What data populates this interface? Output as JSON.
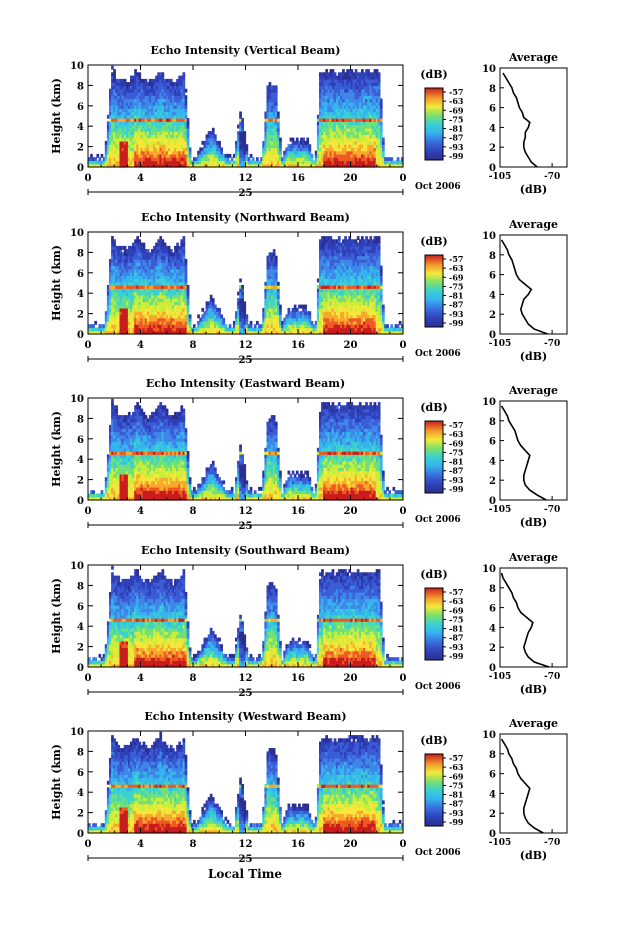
{
  "figure": {
    "x_label": "Local Time",
    "date_day": "25",
    "date_month": "Oct 2006",
    "colorbar_unit": "(dB)",
    "avg_title": "Average",
    "avg_xlabel": "(dB)"
  },
  "colors": {
    "palette": [
      "#2b2f8f",
      "#3040b8",
      "#3a5cd6",
      "#3f86e8",
      "#35b4ee",
      "#3ad2d0",
      "#6fe07a",
      "#c8ee3a",
      "#f6e73a",
      "#f7a92e",
      "#ee5a24",
      "#c91d1d"
    ]
  },
  "chart_data": [
    {
      "type": "heatmap",
      "title": "Echo Intensity (Vertical Beam)",
      "ylabel": "Height (km)",
      "x_ticks": [
        "0",
        "4",
        "8",
        "12",
        "16",
        "20",
        "0"
      ],
      "y_ticks": [
        "0",
        "2",
        "4",
        "6",
        "8",
        "10"
      ],
      "xlim": [
        0,
        24
      ],
      "ylim": [
        0,
        10
      ],
      "colorbar_ticks": [
        "-57",
        "-63",
        "-69",
        "-75",
        "-81",
        "-87",
        "-93",
        "-99"
      ],
      "profile": {
        "x_ticks": [
          "-105",
          "-70"
        ],
        "xlim": [
          -105,
          -60
        ],
        "heights": [
          0,
          0.5,
          1,
          1.5,
          2,
          2.5,
          3,
          3.5,
          4,
          4.5,
          5,
          5.5,
          6,
          6.5,
          7,
          7.5,
          8,
          8.5,
          9,
          9.5
        ],
        "values": [
          -80,
          -84,
          -86,
          -88,
          -89,
          -89,
          -88,
          -88,
          -86,
          -85,
          -89,
          -90,
          -92,
          -93,
          -94,
          -96,
          -97,
          -99,
          -101,
          -103
        ]
      }
    },
    {
      "type": "heatmap",
      "title": "Echo Intensity (Northward Beam)",
      "ylabel": "Height (km)",
      "x_ticks": [
        "0",
        "4",
        "8",
        "12",
        "16",
        "20",
        "0"
      ],
      "y_ticks": [
        "0",
        "2",
        "4",
        "6",
        "8",
        "10"
      ],
      "xlim": [
        0,
        24
      ],
      "ylim": [
        0,
        10
      ],
      "colorbar_ticks": [
        "-57",
        "-63",
        "-69",
        "-75",
        "-81",
        "-87",
        "-93",
        "-99"
      ],
      "profile": {
        "x_ticks": [
          "-105",
          "-70"
        ],
        "xlim": [
          -105,
          -60
        ],
        "heights": [
          0,
          0.5,
          1,
          1.5,
          2,
          2.5,
          3,
          3.5,
          4,
          4.5,
          5,
          5.5,
          6,
          6.5,
          7,
          7.5,
          8,
          8.5,
          9,
          9.5
        ],
        "values": [
          -73,
          -82,
          -86,
          -88,
          -90,
          -91,
          -90,
          -89,
          -86,
          -84,
          -88,
          -92,
          -94,
          -95,
          -96,
          -97,
          -99,
          -100,
          -102,
          -104
        ]
      }
    },
    {
      "type": "heatmap",
      "title": "Echo Intensity (Eastward Beam)",
      "ylabel": "Height (km)",
      "x_ticks": [
        "0",
        "4",
        "8",
        "12",
        "16",
        "20",
        "0"
      ],
      "y_ticks": [
        "0",
        "2",
        "4",
        "6",
        "8",
        "10"
      ],
      "xlim": [
        0,
        24
      ],
      "ylim": [
        0,
        10
      ],
      "colorbar_ticks": [
        "-57",
        "-63",
        "-69",
        "-75",
        "-81",
        "-87",
        "-93",
        "-99"
      ],
      "profile": {
        "x_ticks": [
          "-105",
          "-70"
        ],
        "xlim": [
          -105,
          -60
        ],
        "heights": [
          0,
          0.5,
          1,
          1.5,
          2,
          2.5,
          3,
          3.5,
          4,
          4.5,
          5,
          5.5,
          6,
          6.5,
          7,
          7.5,
          8,
          8.5,
          9,
          9.5
        ],
        "values": [
          -74,
          -80,
          -85,
          -88,
          -89,
          -89,
          -88,
          -87,
          -86,
          -85,
          -88,
          -91,
          -93,
          -94,
          -95,
          -97,
          -99,
          -100,
          -102,
          -104
        ]
      }
    },
    {
      "type": "heatmap",
      "title": "Echo Intensity (Southward Beam)",
      "ylabel": "Height (km)",
      "x_ticks": [
        "0",
        "4",
        "8",
        "12",
        "16",
        "20",
        "0"
      ],
      "y_ticks": [
        "0",
        "2",
        "4",
        "6",
        "8",
        "10"
      ],
      "xlim": [
        0,
        24
      ],
      "ylim": [
        0,
        10
      ],
      "colorbar_ticks": [
        "-57",
        "-63",
        "-69",
        "-75",
        "-81",
        "-87",
        "-93",
        "-99"
      ],
      "profile": {
        "x_ticks": [
          "-105",
          "-70"
        ],
        "xlim": [
          -105,
          -60
        ],
        "heights": [
          0,
          0.5,
          1,
          1.5,
          2,
          2.5,
          3,
          3.5,
          4,
          4.5,
          5,
          5.5,
          6,
          6.5,
          7,
          7.5,
          8,
          8.5,
          9,
          9.5
        ],
        "values": [
          -72,
          -82,
          -86,
          -88,
          -89,
          -88,
          -87,
          -86,
          -84,
          -83,
          -87,
          -91,
          -93,
          -94,
          -96,
          -97,
          -99,
          -101,
          -103,
          -104
        ]
      }
    },
    {
      "type": "heatmap",
      "title": "Echo Intensity (Westward Beam)",
      "ylabel": "Height (km)",
      "x_ticks": [
        "0",
        "4",
        "8",
        "12",
        "16",
        "20",
        "0"
      ],
      "y_ticks": [
        "0",
        "2",
        "4",
        "6",
        "8",
        "10"
      ],
      "xlim": [
        0,
        24
      ],
      "ylim": [
        0,
        10
      ],
      "colorbar_ticks": [
        "-57",
        "-63",
        "-69",
        "-75",
        "-81",
        "-87",
        "-93",
        "-99"
      ],
      "profile": {
        "x_ticks": [
          "-105",
          "-70"
        ],
        "xlim": [
          -105,
          -60
        ],
        "heights": [
          0,
          0.5,
          1,
          1.5,
          2,
          2.5,
          3,
          3.5,
          4,
          4.5,
          5,
          5.5,
          6,
          6.5,
          7,
          7.5,
          8,
          8.5,
          9,
          9.5
        ],
        "values": [
          -76,
          -82,
          -86,
          -88,
          -89,
          -89,
          -88,
          -87,
          -86,
          -85,
          -88,
          -91,
          -93,
          -94,
          -96,
          -97,
          -99,
          -100,
          -102,
          -104
        ]
      }
    }
  ]
}
